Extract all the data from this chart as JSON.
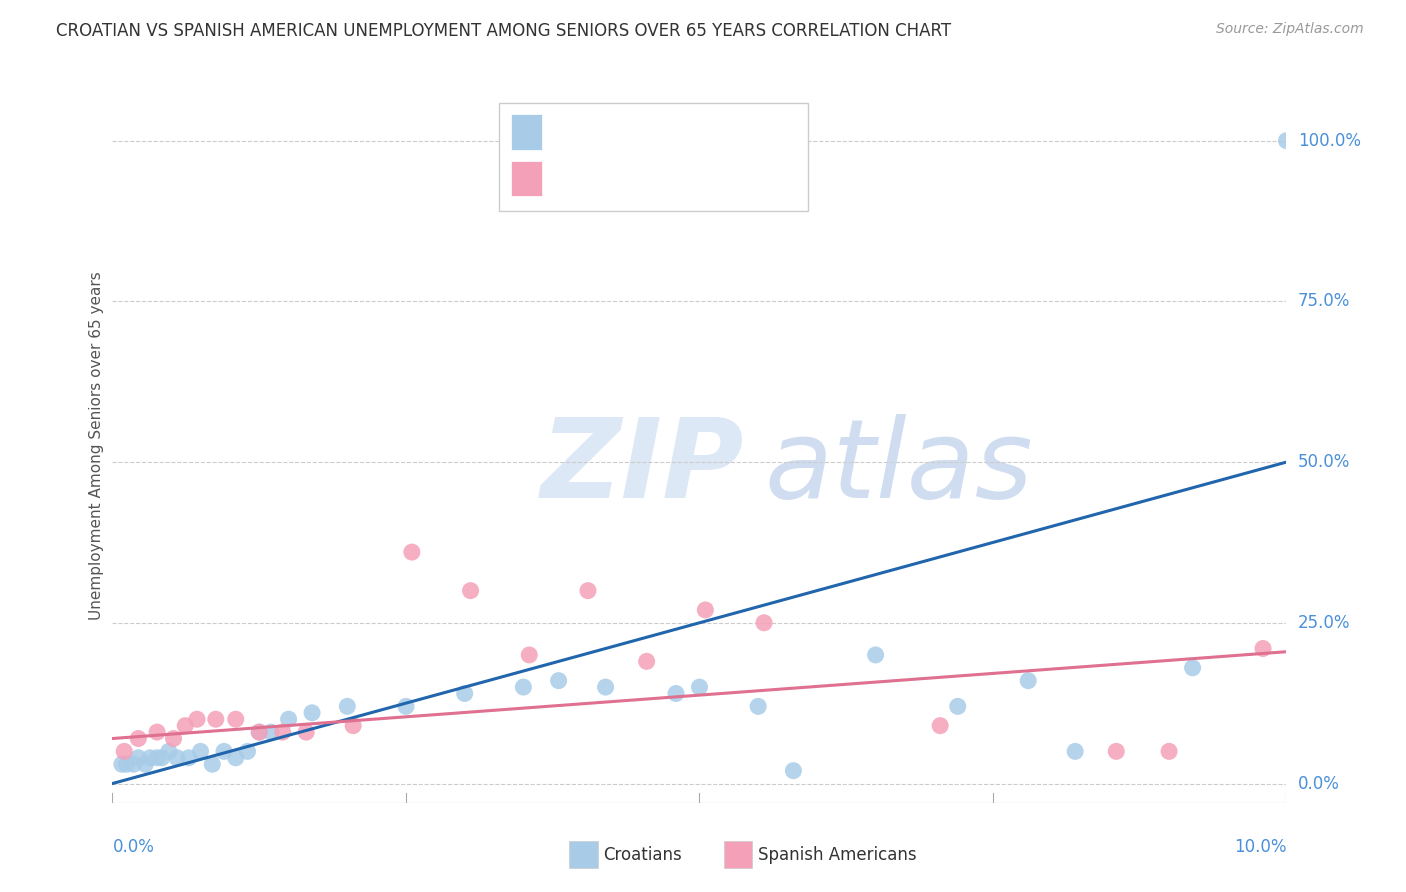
{
  "title": "CROATIAN VS SPANISH AMERICAN UNEMPLOYMENT AMONG SENIORS OVER 65 YEARS CORRELATION CHART",
  "source": "Source: ZipAtlas.com",
  "ylabel": "Unemployment Among Seniors over 65 years",
  "ytick_values": [
    0,
    25,
    50,
    75,
    100
  ],
  "xmin": 0.0,
  "xmax": 10.0,
  "ymin": -3,
  "ymax": 108,
  "croatian_color": "#a8cce8",
  "spanish_color": "#f4a0b8",
  "trendline_croatian_color": "#2166ac",
  "trendline_spanish_color": "#e07090",
  "croatian_x": [
    0.08,
    0.12,
    0.18,
    0.22,
    0.28,
    0.32,
    0.38,
    0.42,
    0.48,
    0.55,
    0.65,
    0.75,
    0.85,
    0.95,
    1.05,
    1.15,
    1.25,
    1.35,
    1.5,
    1.7,
    2.0,
    2.5,
    3.0,
    3.5,
    3.8,
    4.2,
    4.8,
    5.0,
    5.5,
    5.8,
    6.5,
    7.2,
    7.8,
    8.2,
    9.2,
    10.0
  ],
  "croatian_y": [
    3,
    3,
    3,
    4,
    3,
    4,
    4,
    4,
    5,
    4,
    4,
    5,
    3,
    5,
    4,
    5,
    8,
    8,
    10,
    11,
    12,
    12,
    14,
    15,
    16,
    15,
    14,
    15,
    12,
    2,
    20,
    12,
    16,
    5,
    18,
    100
  ],
  "spanish_x": [
    0.1,
    0.22,
    0.38,
    0.52,
    0.62,
    0.72,
    0.88,
    1.05,
    1.25,
    1.45,
    1.65,
    2.05,
    2.55,
    3.05,
    3.55,
    4.05,
    4.55,
    5.05,
    5.55,
    7.05,
    8.55,
    9.0,
    9.8
  ],
  "spanish_y": [
    5,
    7,
    8,
    7,
    9,
    10,
    10,
    10,
    8,
    8,
    8,
    9,
    36,
    30,
    20,
    30,
    19,
    27,
    25,
    9,
    5,
    5,
    21
  ],
  "trend_cr_x0": 0.0,
  "trend_cr_y0": 0.0,
  "trend_cr_x1": 10.0,
  "trend_cr_y1": 50.0,
  "trend_sp_x0": 0.0,
  "trend_sp_y0": 7.0,
  "trend_sp_x1": 10.0,
  "trend_sp_y1": 20.5,
  "xlabel_color": "#4a90d9",
  "ytick_label_color": "#4a90d9",
  "title_color": "#333333",
  "source_color": "#999999",
  "ylabel_color": "#555555",
  "grid_color": "#cccccc",
  "legend_box_color": "#cccccc",
  "watermark_color": "#dce8f5"
}
